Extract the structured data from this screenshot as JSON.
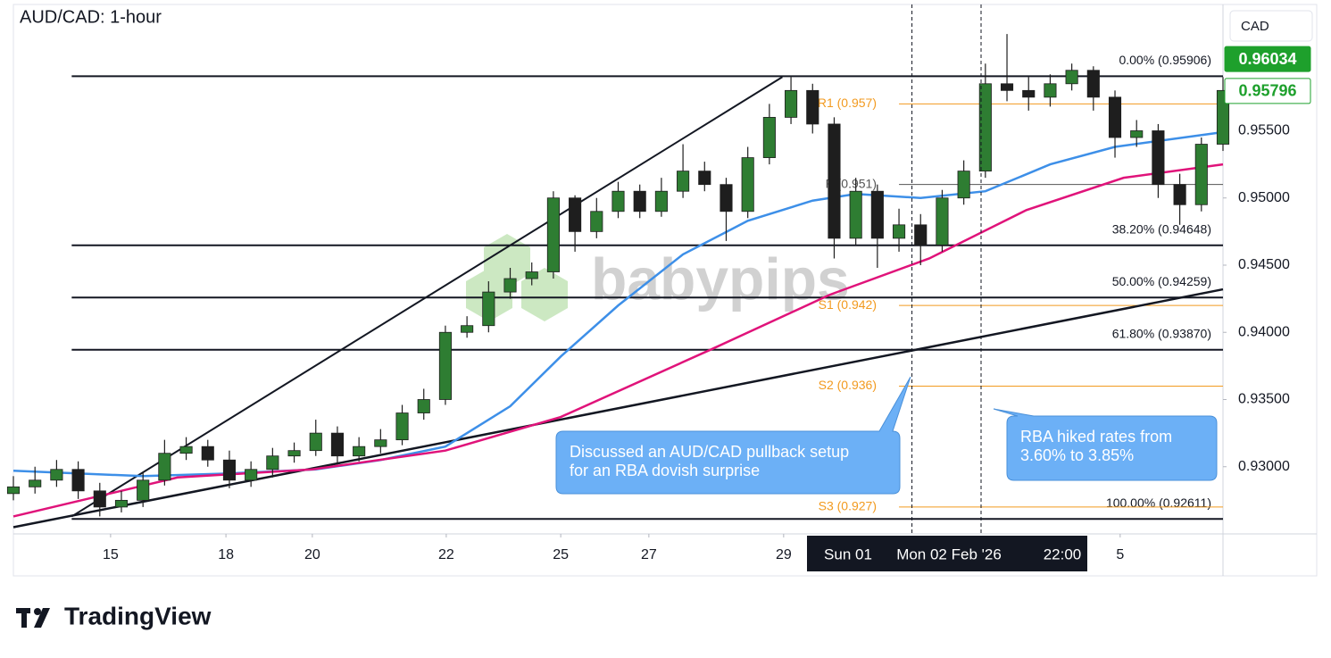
{
  "chart_data": {
    "type": "candlestick",
    "title": "AUD/CAD: 1-hour",
    "unit_label": "CAD",
    "watermark": "babypips",
    "brand": "TradingView",
    "xlim": [
      0,
      28
    ],
    "ylim": [
      0.925,
      0.9644
    ],
    "yticks": [
      {
        "value": 0.93,
        "label": "0.93000"
      },
      {
        "value": 0.935,
        "label": "0.93500"
      },
      {
        "value": 0.94,
        "label": "0.94000"
      },
      {
        "value": 0.945,
        "label": "0.94500"
      },
      {
        "value": 0.95,
        "label": "0.95000"
      },
      {
        "value": 0.955,
        "label": "0.95500"
      }
    ],
    "xticks": [
      {
        "value": 2.25,
        "label": "15"
      },
      {
        "value": 4.92,
        "label": "18"
      },
      {
        "value": 6.92,
        "label": "20"
      },
      {
        "value": 10.02,
        "label": "22"
      },
      {
        "value": 12.67,
        "label": "25"
      },
      {
        "value": 14.71,
        "label": "27"
      },
      {
        "value": 17.83,
        "label": "29"
      },
      {
        "value": 25.62,
        "label": "5"
      }
    ],
    "up_color": "#2e7d32",
    "down_color": "#1e1e1e",
    "x": [
      0,
      0.5,
      1,
      1.5,
      2,
      2.5,
      3,
      3.5,
      4,
      4.5,
      5,
      5.5,
      6,
      6.5,
      7,
      7.5,
      8,
      8.5,
      9,
      9.5,
      10,
      10.5,
      11,
      11.5,
      12,
      12.5,
      13,
      13.5,
      14,
      14.5,
      15,
      15.5,
      16,
      16.5,
      17,
      17.5,
      18,
      18.5,
      19,
      19.5,
      20,
      20.5,
      21,
      21.5,
      22,
      22.5,
      23,
      23.5,
      24,
      24.5,
      25,
      25.5,
      26,
      26.5,
      27,
      27.5,
      28
    ],
    "open": [
      0.928,
      0.9285,
      0.929,
      0.9298,
      0.9282,
      0.927,
      0.9275,
      0.929,
      0.931,
      0.9315,
      0.9305,
      0.929,
      0.9298,
      0.9308,
      0.9312,
      0.9325,
      0.9308,
      0.9315,
      0.932,
      0.934,
      0.935,
      0.94,
      0.9405,
      0.943,
      0.944,
      0.9445,
      0.95,
      0.9475,
      0.949,
      0.9505,
      0.949,
      0.9505,
      0.952,
      0.951,
      0.949,
      0.953,
      0.956,
      0.958,
      0.9555,
      0.947,
      0.9505,
      0.947,
      0.948,
      0.9465,
      0.95,
      0.952,
      0.9585,
      0.958,
      0.9575,
      0.9585,
      0.9595,
      0.9575,
      0.9545,
      0.955,
      0.951,
      0.9495,
      0.954
    ],
    "high": [
      0.9293,
      0.93,
      0.9305,
      0.9304,
      0.9288,
      0.9282,
      0.9296,
      0.932,
      0.9322,
      0.932,
      0.9312,
      0.9304,
      0.9314,
      0.9318,
      0.9335,
      0.933,
      0.9322,
      0.9328,
      0.9346,
      0.9358,
      0.9405,
      0.9412,
      0.9438,
      0.9448,
      0.9452,
      0.9505,
      0.9502,
      0.95,
      0.9512,
      0.951,
      0.9515,
      0.954,
      0.9527,
      0.9515,
      0.9538,
      0.957,
      0.959,
      0.9585,
      0.956,
      0.9515,
      0.951,
      0.9492,
      0.9488,
      0.9506,
      0.9528,
      0.96,
      0.9622,
      0.959,
      0.9592,
      0.96,
      0.9598,
      0.958,
      0.9558,
      0.9555,
      0.9518,
      0.9545,
      0.959
    ],
    "low": [
      0.9275,
      0.928,
      0.9285,
      0.9276,
      0.9263,
      0.9266,
      0.927,
      0.9286,
      0.9305,
      0.93,
      0.9284,
      0.9285,
      0.9292,
      0.9303,
      0.9308,
      0.9302,
      0.9304,
      0.931,
      0.9316,
      0.9335,
      0.9346,
      0.9396,
      0.94,
      0.9425,
      0.9435,
      0.944,
      0.946,
      0.947,
      0.9485,
      0.9485,
      0.9486,
      0.95,
      0.9505,
      0.9468,
      0.9485,
      0.9525,
      0.9555,
      0.9548,
      0.9455,
      0.9465,
      0.9448,
      0.946,
      0.945,
      0.946,
      0.9495,
      0.9515,
      0.9572,
      0.9565,
      0.9568,
      0.958,
      0.9565,
      0.953,
      0.9538,
      0.95,
      0.948,
      0.949,
      0.9535
    ],
    "close": [
      0.9285,
      0.929,
      0.9298,
      0.9282,
      0.927,
      0.9275,
      0.929,
      0.931,
      0.9315,
      0.9305,
      0.929,
      0.9298,
      0.9308,
      0.9312,
      0.9325,
      0.9308,
      0.9315,
      0.932,
      0.934,
      0.935,
      0.94,
      0.9405,
      0.943,
      0.944,
      0.9445,
      0.95,
      0.9475,
      0.949,
      0.9505,
      0.949,
      0.9505,
      0.952,
      0.951,
      0.949,
      0.953,
      0.956,
      0.958,
      0.9555,
      0.947,
      0.9505,
      0.947,
      0.948,
      0.9465,
      0.95,
      0.952,
      0.9585,
      0.958,
      0.9575,
      0.9585,
      0.9595,
      0.9575,
      0.9545,
      0.955,
      0.951,
      0.9495,
      0.954,
      0.958
    ],
    "moving_averages": [
      {
        "color": "#3d8fe8",
        "x": [
          0,
          3,
          5,
          7,
          8.5,
          10,
          11.5,
          12.67,
          14,
          15.5,
          17,
          18.5,
          19.5,
          21,
          22.5,
          24,
          25.5,
          28
        ],
        "values": [
          0.9297,
          0.9293,
          0.9295,
          0.9298,
          0.9305,
          0.9315,
          0.9345,
          0.9382,
          0.942,
          0.9458,
          0.9483,
          0.9498,
          0.9503,
          0.95,
          0.9505,
          0.9525,
          0.9538,
          0.9549
        ]
      },
      {
        "color": "#e0137a",
        "x": [
          0,
          3.8,
          6.92,
          10,
          12.67,
          16.2,
          18.9,
          21.2,
          23.45,
          25.7,
          28
        ],
        "values": [
          0.9263,
          0.9292,
          0.9298,
          0.9312,
          0.9337,
          0.9388,
          0.9428,
          0.9455,
          0.9491,
          0.9515,
          0.9525
        ]
      }
    ],
    "fib_start": 1.35,
    "fib_levels": [
      {
        "label": "0.00% (0.95906)",
        "value": 0.95906
      },
      {
        "label": "38.20% (0.94648)",
        "value": 0.94648
      },
      {
        "label": "50.00% (0.94259)",
        "value": 0.94259
      },
      {
        "label": "61.80% (0.93870)",
        "value": 0.9387
      },
      {
        "label": "100.00% (0.92611)",
        "value": 0.92611
      }
    ],
    "pivot_start": 20.5,
    "pivots": [
      {
        "label": "R1 (0.957)",
        "value": 0.957,
        "color": "#f29a1f"
      },
      {
        "label": "P (0.951)",
        "value": 0.951,
        "color": "#555555"
      },
      {
        "label": "S1 (0.942)",
        "value": 0.942,
        "color": "#f29a1f"
      },
      {
        "label": "S2 (0.936)",
        "value": 0.936,
        "color": "#f29a1f"
      },
      {
        "label": "S3 (0.927)",
        "value": 0.927,
        "color": "#f29a1f"
      }
    ],
    "trendlines": [
      {
        "x": [
          1.35,
          17.8
        ],
        "y": [
          0.9263,
          0.959
        ]
      },
      {
        "x": [
          0,
          28
        ],
        "y": [
          0.9255,
          0.9432
        ]
      }
    ],
    "vlines": [
      20.8,
      22.4
    ],
    "price_tags": [
      {
        "value": 0.96034,
        "filled": true
      },
      {
        "value": 0.95796,
        "filled": false
      }
    ],
    "crosshair_labels": [
      "Sun 01",
      "Mon 02 Feb '26",
      "22:00"
    ],
    "annotations": [
      {
        "lines": [
          "Discussed an AUD/CAD pullback setup",
          "for an RBA dovish surprise"
        ]
      },
      {
        "lines": [
          "RBA hiked rates from",
          "3.60% to 3.85%"
        ]
      }
    ]
  }
}
